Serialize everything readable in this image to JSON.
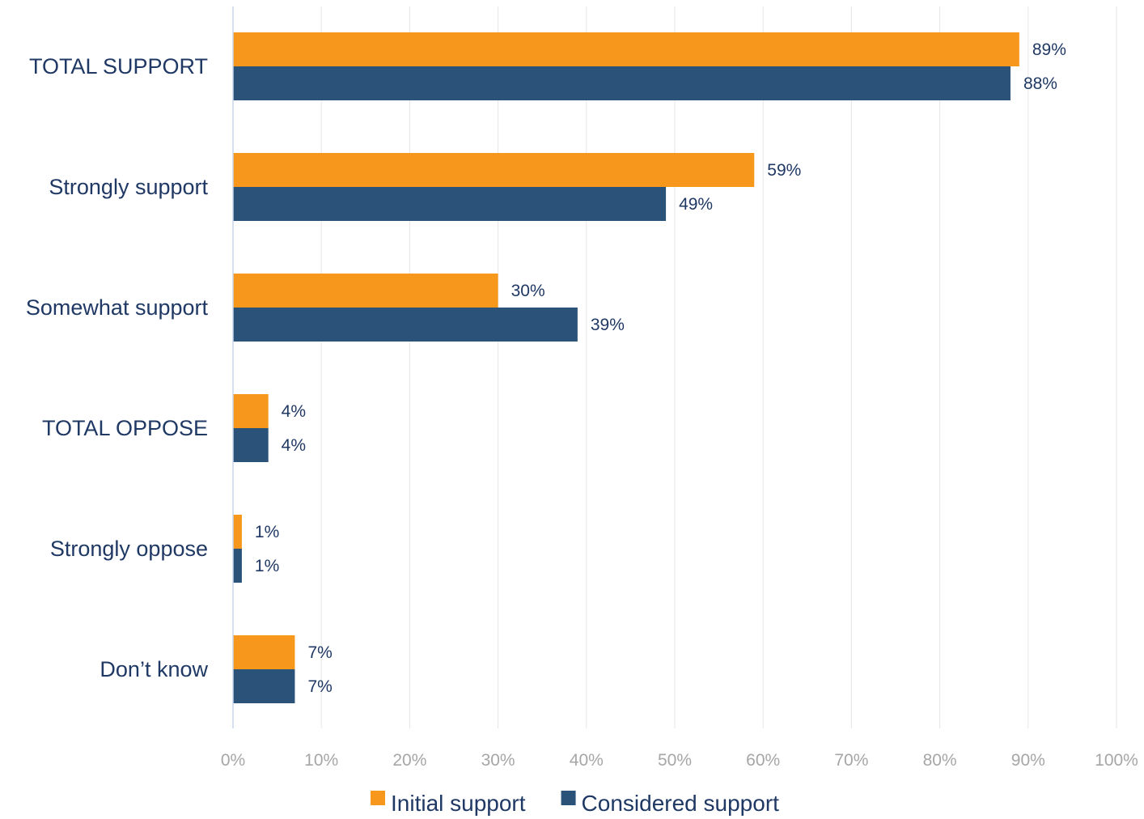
{
  "chart_data": {
    "type": "bar",
    "orientation": "horizontal",
    "title": "",
    "xlabel": "",
    "ylabel": "",
    "categories": [
      "TOTAL SUPPORT",
      "Strongly support",
      "Somewhat support",
      "TOTAL OPPOSE",
      "Strongly oppose",
      "Don’t know"
    ],
    "series": [
      {
        "name": "Initial support",
        "color": "#f7981d",
        "values": [
          89,
          59,
          30,
          4,
          1,
          7
        ],
        "labels": [
          "89%",
          "59%",
          "30%",
          "4%",
          "1%",
          "7%"
        ]
      },
      {
        "name": "Considered support",
        "color": "#2b5279",
        "values": [
          88,
          49,
          39,
          4,
          1,
          7
        ],
        "labels": [
          "88%",
          "49%",
          "39%",
          "4%",
          "1%",
          "7%"
        ]
      }
    ],
    "xlim": [
      0,
      100
    ],
    "x_ticks": [
      "0%",
      "10%",
      "20%",
      "30%",
      "40%",
      "50%",
      "60%",
      "70%",
      "80%",
      "90%",
      "100%"
    ],
    "grid": "vertical",
    "legend": "bottom",
    "colors": {
      "gridline": "#e6e6e6",
      "axis": "#c5d5ea",
      "text": "#1f3864",
      "tick_text": "#a6a6a6"
    }
  }
}
